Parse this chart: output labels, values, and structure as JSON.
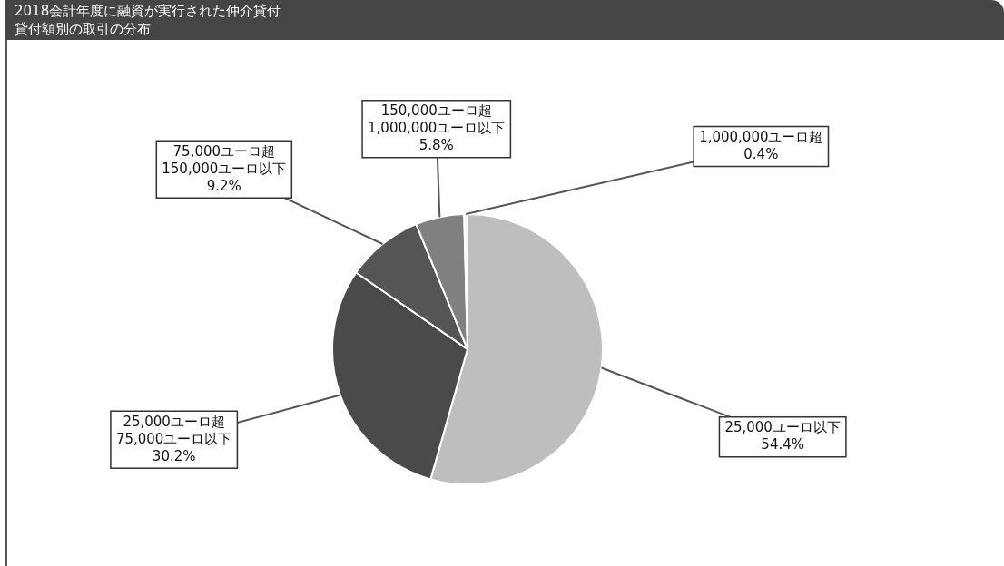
{
  "chart_data": {
    "type": "pie",
    "title": "2018会計年度に融資が実行された仲介貸付",
    "subtitle": "貸付額別の取引の分布",
    "categories": [
      "25,000ユーロ以下",
      "25,000ユーロ超\n75,000ユーロ以下",
      "75,000ユーロ超\n150,000ユーロ以下",
      "150,000ユーロ超\n1,000,000ユーロ以下",
      "1,000,000ユーロ超"
    ],
    "values": [
      54.4,
      30.2,
      9.2,
      5.8,
      0.4
    ],
    "value_labels": [
      "54.4%",
      "30.2%",
      "9.2%",
      "5.8%",
      "0.4%"
    ],
    "colors": [
      "#bebebe",
      "#4a4a4a",
      "#555555",
      "#808080",
      "#f2f2f2"
    ],
    "legend": false
  }
}
